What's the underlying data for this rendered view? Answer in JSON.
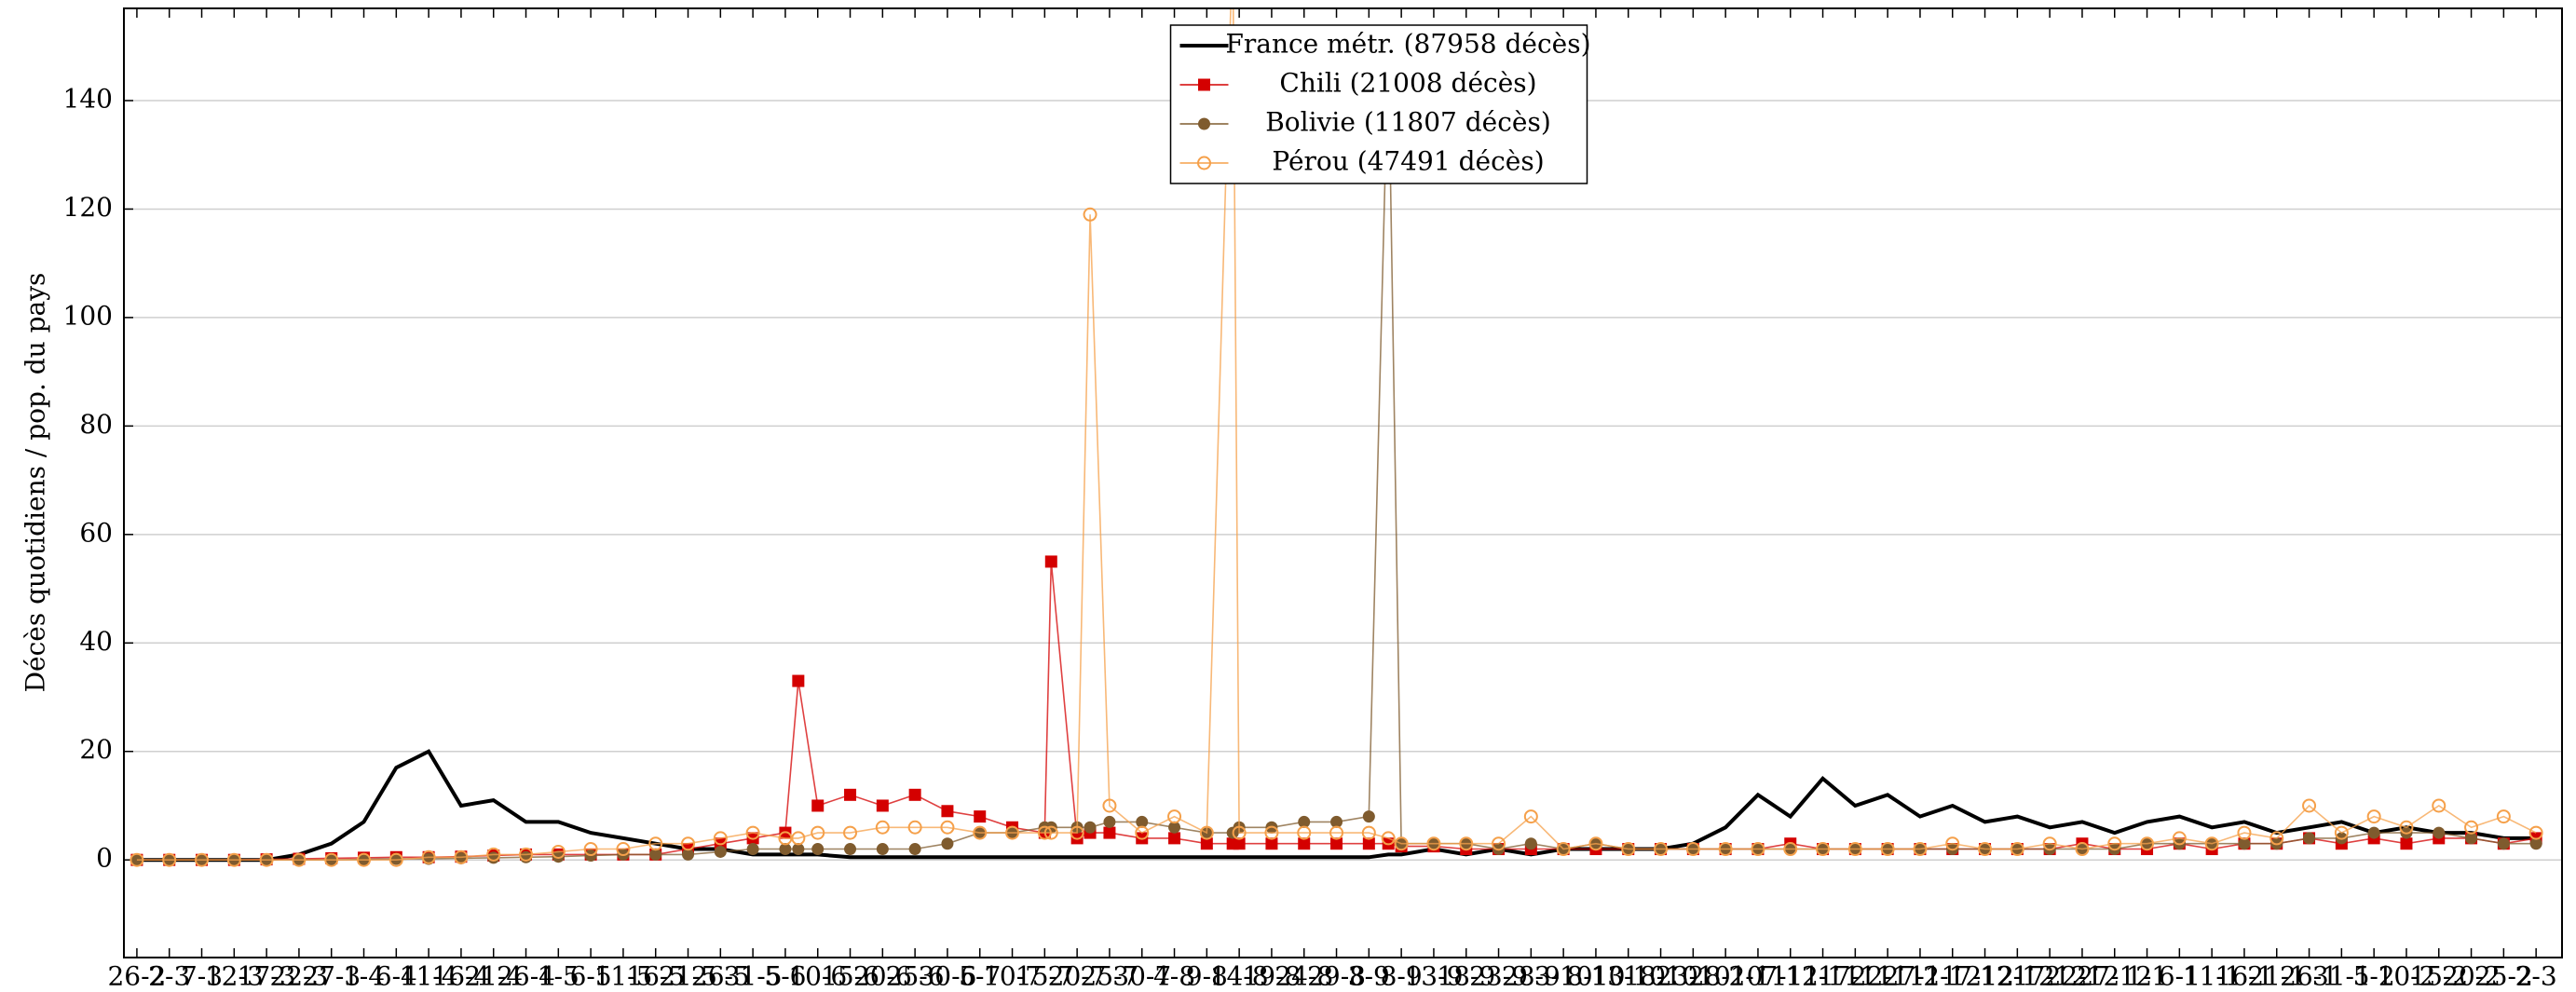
{
  "chart_data": {
    "type": "line",
    "ylabel": "Décès quotidiens / pop. du pays",
    "x": [
      0,
      5,
      10,
      15,
      20,
      25,
      30,
      35,
      40,
      45,
      50,
      55,
      60,
      65,
      70,
      75,
      80,
      85,
      90,
      95,
      100,
      102,
      105,
      110,
      115,
      120,
      125,
      130,
      135,
      140,
      141,
      145,
      147,
      150,
      155,
      160,
      165,
      169,
      170,
      175,
      180,
      185,
      190,
      193,
      195,
      200,
      205,
      210,
      215,
      220,
      225,
      230,
      235,
      240,
      245,
      250,
      255,
      260,
      265,
      270,
      275,
      280,
      285,
      290,
      295,
      300,
      305,
      310,
      315,
      320,
      325,
      330,
      335,
      340,
      345,
      350,
      355,
      360,
      365,
      370
    ],
    "xlim": [
      -2,
      374
    ],
    "xticks": [
      {
        "value": 0,
        "label": "26-2"
      },
      {
        "value": 5,
        "label": "2-3"
      },
      {
        "value": 10,
        "label": "7-3"
      },
      {
        "value": 15,
        "label": "12-3"
      },
      {
        "value": 20,
        "label": "17-3"
      },
      {
        "value": 25,
        "label": "22-3"
      },
      {
        "value": 30,
        "label": "27-3"
      },
      {
        "value": 35,
        "label": "1-4"
      },
      {
        "value": 40,
        "label": "6-4"
      },
      {
        "value": 45,
        "label": "11-4"
      },
      {
        "value": 50,
        "label": "16-4"
      },
      {
        "value": 55,
        "label": "21-4"
      },
      {
        "value": 60,
        "label": "26-4"
      },
      {
        "value": 65,
        "label": "1-5"
      },
      {
        "value": 70,
        "label": "6-5"
      },
      {
        "value": 75,
        "label": "11-5"
      },
      {
        "value": 80,
        "label": "16-5"
      },
      {
        "value": 85,
        "label": "21-5"
      },
      {
        "value": 90,
        "label": "26-5"
      },
      {
        "value": 95,
        "label": "31-5"
      },
      {
        "value": 100,
        "label": "5-6"
      },
      {
        "value": 105,
        "label": "10-6"
      },
      {
        "value": 110,
        "label": "15-6"
      },
      {
        "value": 115,
        "label": "20-6"
      },
      {
        "value": 120,
        "label": "25-6"
      },
      {
        "value": 125,
        "label": "30-6"
      },
      {
        "value": 130,
        "label": "5-7"
      },
      {
        "value": 135,
        "label": "10-7"
      },
      {
        "value": 140,
        "label": "15-7"
      },
      {
        "value": 145,
        "label": "20-7"
      },
      {
        "value": 150,
        "label": "25-7"
      },
      {
        "value": 155,
        "label": "30-7"
      },
      {
        "value": 160,
        "label": "4-8"
      },
      {
        "value": 165,
        "label": "9-8"
      },
      {
        "value": 170,
        "label": "14-8"
      },
      {
        "value": 175,
        "label": "19-8"
      },
      {
        "value": 180,
        "label": "24-8"
      },
      {
        "value": 185,
        "label": "29-8"
      },
      {
        "value": 190,
        "label": "3-9"
      },
      {
        "value": 195,
        "label": "8-9"
      },
      {
        "value": 200,
        "label": "13-9"
      },
      {
        "value": 205,
        "label": "18-9"
      },
      {
        "value": 210,
        "label": "23-9"
      },
      {
        "value": 215,
        "label": "28-9"
      },
      {
        "value": 220,
        "label": "3-10"
      },
      {
        "value": 225,
        "label": "8-10"
      },
      {
        "value": 230,
        "label": "13-10"
      },
      {
        "value": 235,
        "label": "18-10"
      },
      {
        "value": 240,
        "label": "23-10"
      },
      {
        "value": 245,
        "label": "28-10"
      },
      {
        "value": 250,
        "label": "2-11"
      },
      {
        "value": 255,
        "label": "7-11"
      },
      {
        "value": 260,
        "label": "12-11"
      },
      {
        "value": 265,
        "label": "17-11"
      },
      {
        "value": 270,
        "label": "22-11"
      },
      {
        "value": 275,
        "label": "27-11"
      },
      {
        "value": 280,
        "label": "2-12"
      },
      {
        "value": 285,
        "label": "7-12"
      },
      {
        "value": 290,
        "label": "12-12"
      },
      {
        "value": 295,
        "label": "17-12"
      },
      {
        "value": 300,
        "label": "22-12"
      },
      {
        "value": 305,
        "label": "27-12"
      },
      {
        "value": 310,
        "label": "1-1"
      },
      {
        "value": 315,
        "label": "6-1"
      },
      {
        "value": 320,
        "label": "11-1"
      },
      {
        "value": 325,
        "label": "16-1"
      },
      {
        "value": 330,
        "label": "21-1"
      },
      {
        "value": 335,
        "label": "26-1"
      },
      {
        "value": 340,
        "label": "31-1"
      },
      {
        "value": 345,
        "label": "5-2"
      },
      {
        "value": 350,
        "label": "10-2"
      },
      {
        "value": 355,
        "label": "15-2"
      },
      {
        "value": 360,
        "label": "20-2"
      },
      {
        "value": 365,
        "label": "25-2"
      },
      {
        "value": 370,
        "label": "2-3"
      }
    ],
    "ylim": [
      -18,
      157
    ],
    "yticks": [
      0,
      20,
      40,
      60,
      80,
      100,
      120,
      140
    ],
    "grid": true,
    "legend": "top",
    "series": [
      {
        "name": "France métr. (87958 décès)",
        "color": "#000000",
        "marker": "none",
        "values": [
          0,
          0,
          0,
          0,
          0,
          1,
          3,
          7,
          17,
          20,
          10,
          11,
          7,
          7,
          5,
          4,
          3,
          2,
          2,
          1,
          1,
          1,
          1,
          0.5,
          0.5,
          0.5,
          0.5,
          0.5,
          0.5,
          0.5,
          0.5,
          0.5,
          0.5,
          0.5,
          0.5,
          0.5,
          0.5,
          0.5,
          0.5,
          0.5,
          0.5,
          0.5,
          0.5,
          1,
          1,
          2,
          1,
          2,
          1,
          2,
          2,
          2,
          2,
          3,
          6,
          12,
          8,
          15,
          10,
          12,
          8,
          10,
          7,
          8,
          6,
          7,
          5,
          7,
          8,
          6,
          7,
          5,
          6,
          7,
          5,
          6,
          5,
          5,
          4,
          4
        ]
      },
      {
        "name": "Chili (21008 décès)",
        "color": "#d40000",
        "marker": "square",
        "values": [
          0,
          0,
          0,
          0,
          0.1,
          0.2,
          0.3,
          0.4,
          0.5,
          0.5,
          0.6,
          0.8,
          1,
          1,
          1,
          1,
          1,
          2,
          3,
          4,
          5,
          33,
          10,
          12,
          10,
          12,
          9,
          8,
          6,
          5,
          55,
          4,
          5,
          5,
          4,
          4,
          3,
          3,
          3,
          3,
          3,
          3,
          3,
          3,
          2.5,
          2.5,
          2,
          2,
          2,
          2,
          2,
          2,
          2,
          2,
          2,
          2,
          3,
          2,
          2,
          2,
          2,
          2,
          2,
          2,
          2,
          3,
          2,
          2,
          3,
          2,
          3,
          3,
          4,
          3,
          4,
          3,
          4,
          4,
          3,
          4
        ]
      },
      {
        "name": "Bolivie (11807 décès)",
        "color": "#7f5b2e",
        "marker": "dot",
        "values": [
          0,
          0,
          0,
          0,
          0,
          0,
          0,
          0.1,
          0.2,
          0.2,
          0.3,
          0.4,
          0.5,
          0.6,
          0.8,
          1,
          1,
          1,
          1.5,
          2,
          2,
          2,
          2,
          2,
          2,
          2,
          3,
          5,
          5,
          6,
          6,
          6,
          6,
          7,
          7,
          6,
          5,
          5,
          6,
          6,
          7,
          7,
          8,
          150,
          3,
          3,
          3,
          2,
          3,
          2,
          3,
          2,
          2,
          2,
          2,
          2,
          2,
          2,
          2,
          2,
          2,
          2,
          2,
          2,
          2,
          2,
          2,
          3,
          3,
          3,
          3,
          3,
          4,
          4,
          5,
          5,
          5,
          4,
          3,
          3
        ]
      },
      {
        "name": "Pérou (47491 décès)",
        "color": "#f5a04a",
        "marker": "circle",
        "values": [
          0,
          0,
          0,
          0,
          0,
          0,
          0,
          0,
          0,
          0.5,
          0.5,
          1,
          1,
          1.5,
          2,
          2,
          3,
          3,
          4,
          5,
          4,
          4,
          5,
          5,
          6,
          6,
          6,
          5,
          5,
          5,
          5,
          5,
          119,
          10,
          5,
          8,
          5,
          170,
          5,
          5,
          5,
          5,
          5,
          4,
          3,
          3,
          3,
          3,
          8,
          2,
          3,
          2,
          2,
          2,
          2,
          2,
          2,
          2,
          2,
          2,
          2,
          3,
          2,
          2,
          3,
          2,
          3,
          3,
          4,
          3,
          5,
          4,
          10,
          5,
          8,
          6,
          10,
          6,
          8,
          5
        ]
      }
    ]
  }
}
